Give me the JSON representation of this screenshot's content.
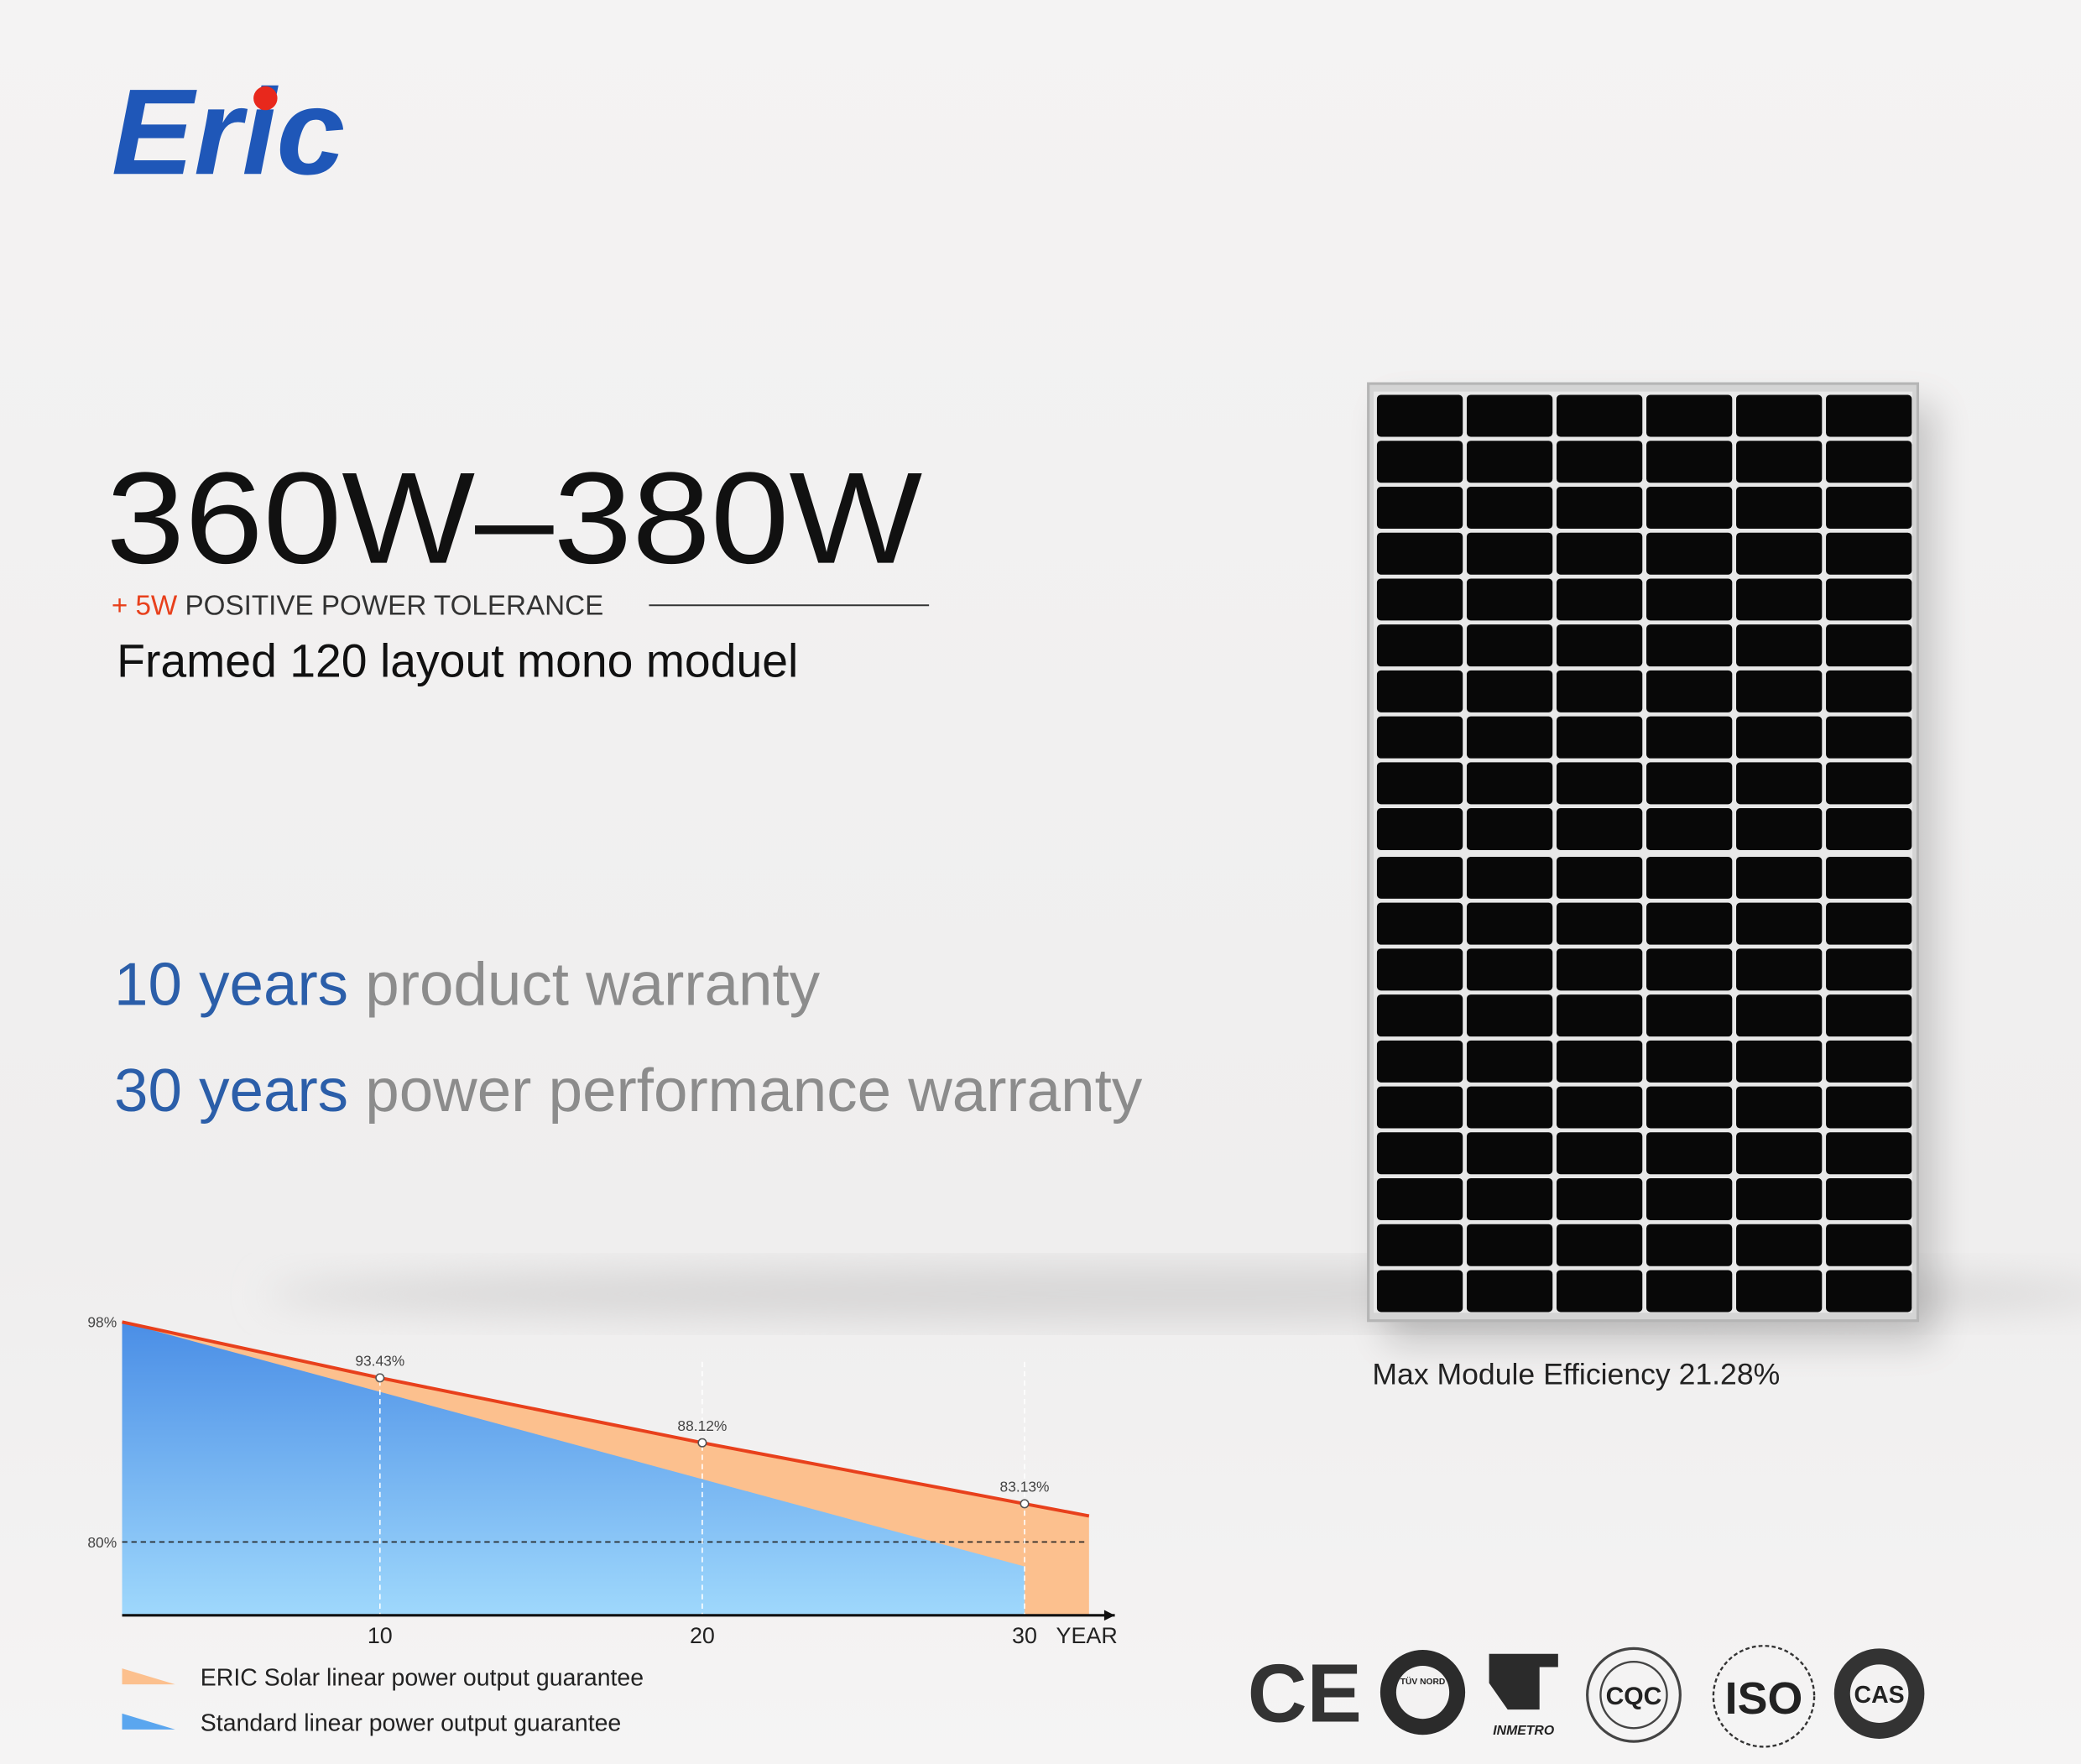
{
  "header": {
    "logo": "Eric"
  },
  "product": {
    "power_range": "360W–380W",
    "tolerance_value": "+ 5W",
    "tolerance_text": "POSITIVE POWER TOLERANCE",
    "subtitle": "Framed 120 layout mono moduel"
  },
  "warranties": [
    {
      "highlight": "10 years",
      "text": "product warranty"
    },
    {
      "highlight": "30 years",
      "text": "power performance warranty"
    }
  ],
  "efficiency": "Max Module Efficiency 21.28%",
  "certifications": [
    "CE",
    "TÜV NORD",
    "INMETRO",
    "CQC",
    "ISO",
    "CAS"
  ],
  "chart_data": {
    "type": "area",
    "xlabel": "YEAR",
    "xlim": [
      2,
      32.8
    ],
    "ylim": [
      74,
      98
    ],
    "xticks": [
      10,
      20,
      30
    ],
    "yticks": [
      {
        "value": 98,
        "label": "98%"
      },
      {
        "value": 80,
        "label": "80%"
      }
    ],
    "series": [
      {
        "name": "ERIC Solar linear power output guarantee",
        "color": "#fcc08e",
        "line_color": "#e8401c",
        "x": [
          2,
          10,
          20,
          30,
          32
        ],
        "values": [
          98,
          93.43,
          88.12,
          83.13,
          82.13
        ],
        "value_labels": [
          null,
          "93.43%",
          "88.12%",
          "83.13%",
          null
        ]
      },
      {
        "name": "Standard linear power output guarantee",
        "color": "#5aa6ef",
        "x": [
          2,
          30
        ],
        "values": [
          98,
          78
        ]
      }
    ]
  }
}
